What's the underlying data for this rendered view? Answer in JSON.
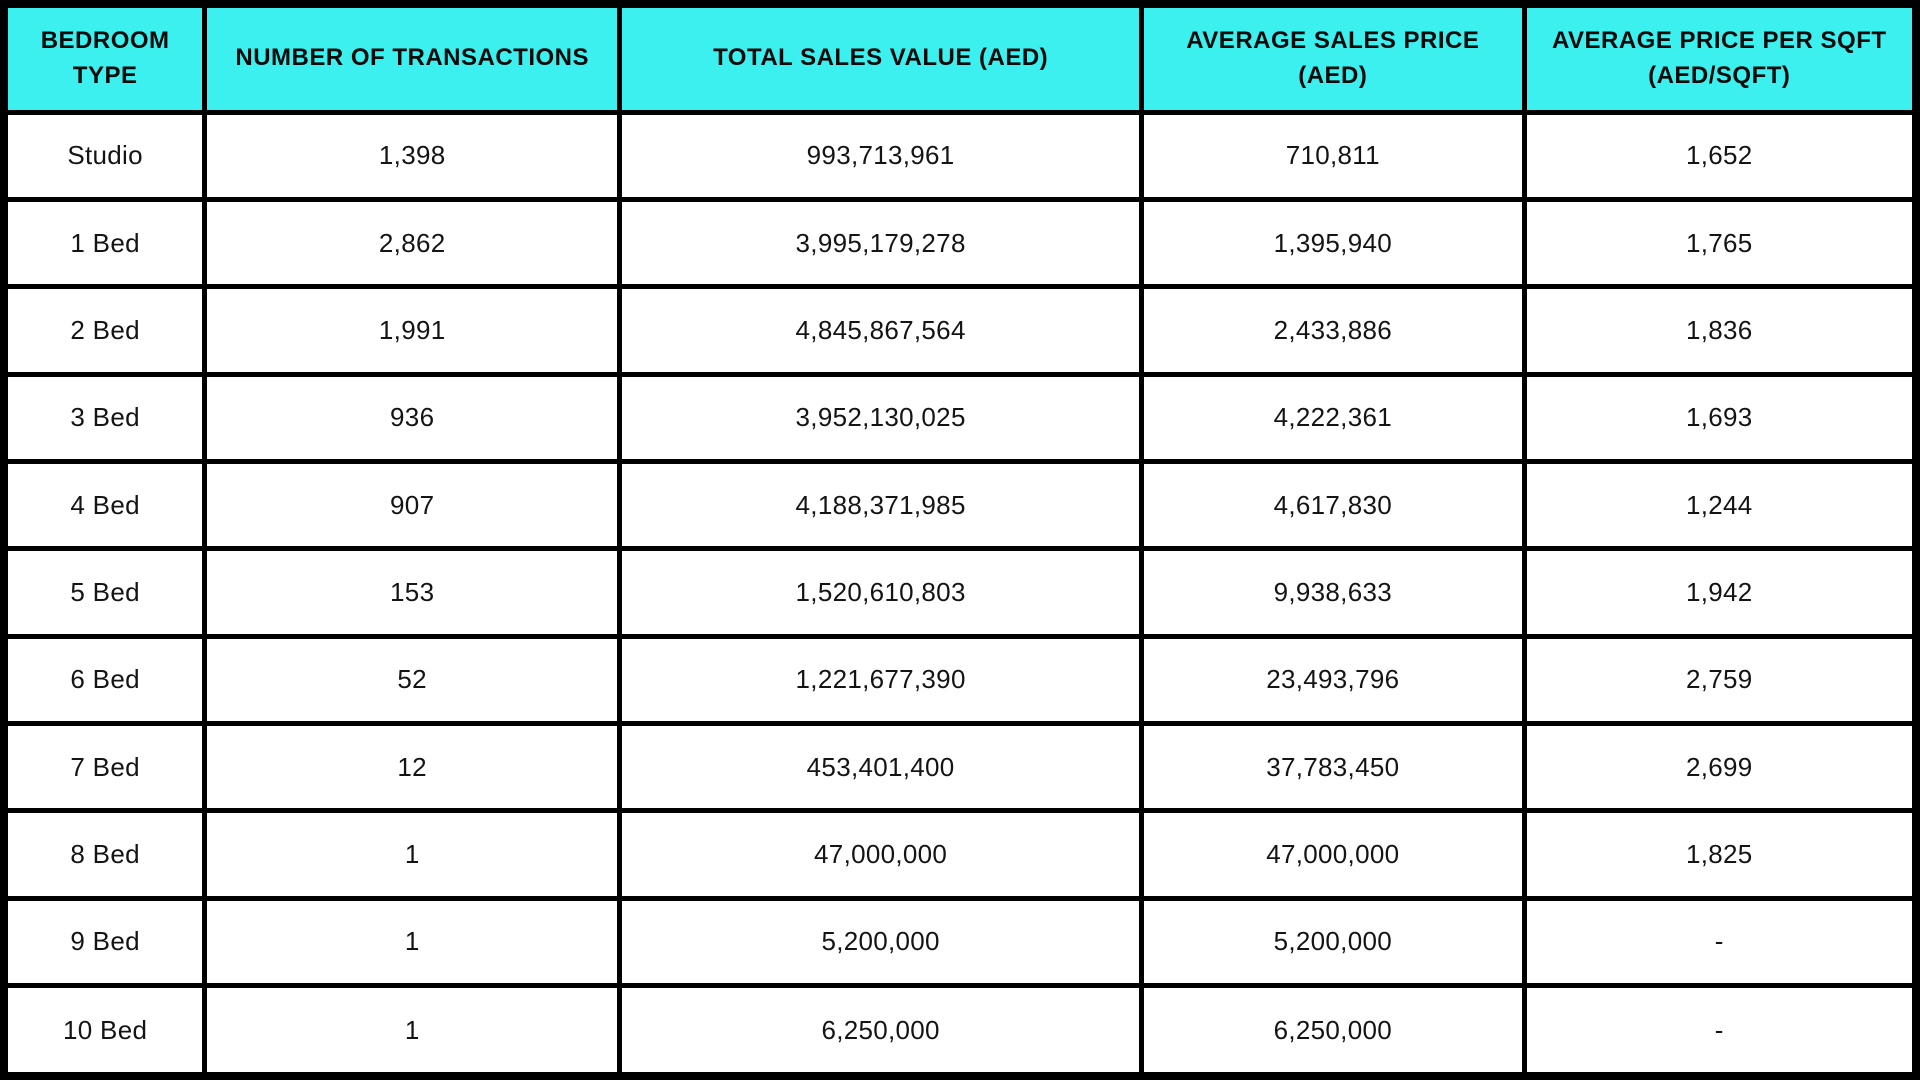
{
  "colors": {
    "header_background": "#3BF0EE",
    "border": "#000000",
    "header_text": "#0B0B0B",
    "cell_text": "#141414"
  },
  "table": {
    "columns": [
      {
        "label": "BEDROOM\nTYPE",
        "width": "10.5%"
      },
      {
        "label": "NUMBER OF TRANSACTIONS",
        "width": "21.7%"
      },
      {
        "label": "TOTAL SALES VALUE (AED)",
        "width": "27.3%"
      },
      {
        "label": "AVERAGE SALES PRICE\n(AED)",
        "width": "20.0%"
      },
      {
        "label": "AVERAGE PRICE PER SQFT\n(AED/SQFT)",
        "width": "20.5%"
      }
    ],
    "rows": [
      [
        "Studio",
        "1,398",
        "993,713,961",
        "710,811",
        "1,652"
      ],
      [
        "1 Bed",
        "2,862",
        "3,995,179,278",
        "1,395,940",
        "1,765"
      ],
      [
        "2 Bed",
        "1,991",
        "4,845,867,564",
        "2,433,886",
        "1,836"
      ],
      [
        "3 Bed",
        "936",
        "3,952,130,025",
        "4,222,361",
        "1,693"
      ],
      [
        "4 Bed",
        "907",
        "4,188,371,985",
        "4,617,830",
        "1,244"
      ],
      [
        "5 Bed",
        "153",
        "1,520,610,803",
        "9,938,633",
        "1,942"
      ],
      [
        "6 Bed",
        "52",
        "1,221,677,390",
        "23,493,796",
        "2,759"
      ],
      [
        "7 Bed",
        "12",
        "453,401,400",
        "37,783,450",
        "2,699"
      ],
      [
        "8 Bed",
        "1",
        "47,000,000",
        "47,000,000",
        "1,825"
      ],
      [
        "9 Bed",
        "1",
        "5,200,000",
        "5,200,000",
        "-"
      ],
      [
        "10 Bed",
        "1",
        "6,250,000",
        "6,250,000",
        "-"
      ]
    ]
  },
  "chart_data": {
    "type": "table",
    "title": "",
    "columns": [
      "BEDROOM TYPE",
      "NUMBER OF TRANSACTIONS",
      "TOTAL SALES VALUE (AED)",
      "AVERAGE SALES PRICE (AED)",
      "AVERAGE PRICE PER SQFT (AED/SQFT)"
    ],
    "categories": [
      "Studio",
      "1 Bed",
      "2 Bed",
      "3 Bed",
      "4 Bed",
      "5 Bed",
      "6 Bed",
      "7 Bed",
      "8 Bed",
      "9 Bed",
      "10 Bed"
    ],
    "series": [
      {
        "name": "NUMBER OF TRANSACTIONS",
        "values": [
          1398,
          2862,
          1991,
          936,
          907,
          153,
          52,
          12,
          1,
          1,
          1
        ]
      },
      {
        "name": "TOTAL SALES VALUE (AED)",
        "values": [
          993713961,
          3995179278,
          4845867564,
          3952130025,
          4188371985,
          1520610803,
          1221677390,
          453401400,
          47000000,
          5200000,
          6250000
        ]
      },
      {
        "name": "AVERAGE SALES PRICE (AED)",
        "values": [
          710811,
          1395940,
          2433886,
          4222361,
          4617830,
          9938633,
          23493796,
          37783450,
          47000000,
          5200000,
          6250000
        ]
      },
      {
        "name": "AVERAGE PRICE PER SQFT (AED/SQFT)",
        "values": [
          1652,
          1765,
          1836,
          1693,
          1244,
          1942,
          2759,
          2699,
          1825,
          null,
          null
        ]
      }
    ],
    "layout": {
      "header_fill": "#3BF0EE",
      "grid": "on",
      "text_align": "center"
    }
  }
}
